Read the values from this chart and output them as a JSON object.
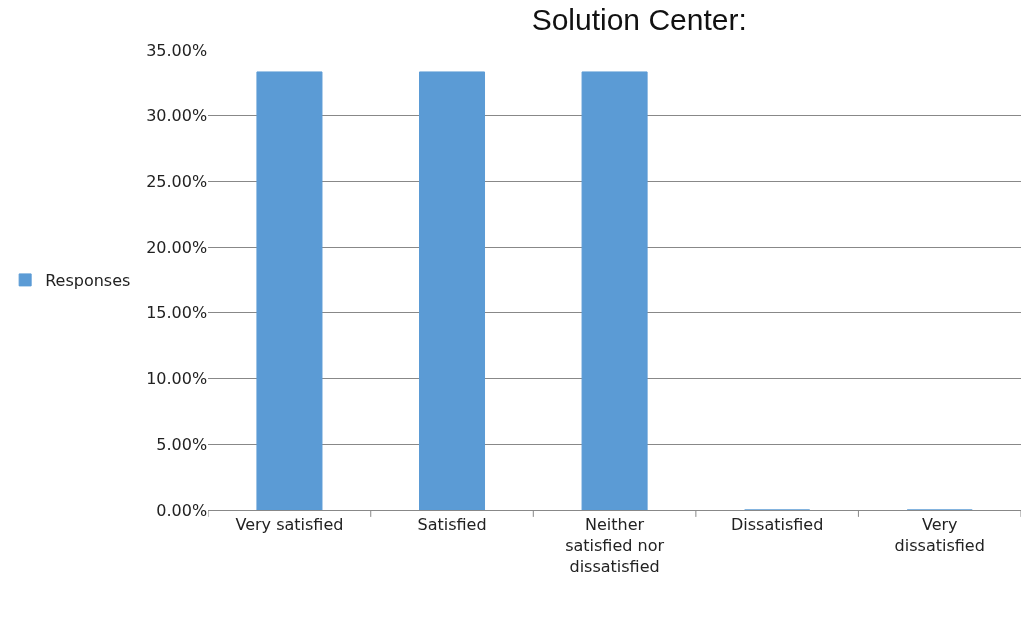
{
  "chart_data": {
    "type": "bar",
    "title": "Solution Center:",
    "categories": [
      "Very satisfied",
      "Satisfied",
      "Neither satisfied nor dissatisfied",
      "Dissatisfied",
      "Very dissatisfied"
    ],
    "series": [
      {
        "name": "Responses",
        "color": "#5b9bd5",
        "values": [
          33.33,
          33.33,
          33.33,
          0,
          0
        ]
      }
    ],
    "ylim": [
      0,
      35
    ],
    "yticks": [
      {
        "value": 0,
        "label": "0.00%"
      },
      {
        "value": 5,
        "label": "5.00%"
      },
      {
        "value": 10,
        "label": "10.00%"
      },
      {
        "value": 15,
        "label": "15.00%"
      },
      {
        "value": 20,
        "label": "20.00%"
      },
      {
        "value": 25,
        "label": "25.00%"
      },
      {
        "value": 30,
        "label": "30.00%"
      },
      {
        "value": 35,
        "label": "35.00%"
      }
    ],
    "grid": "y",
    "legend": "left"
  }
}
